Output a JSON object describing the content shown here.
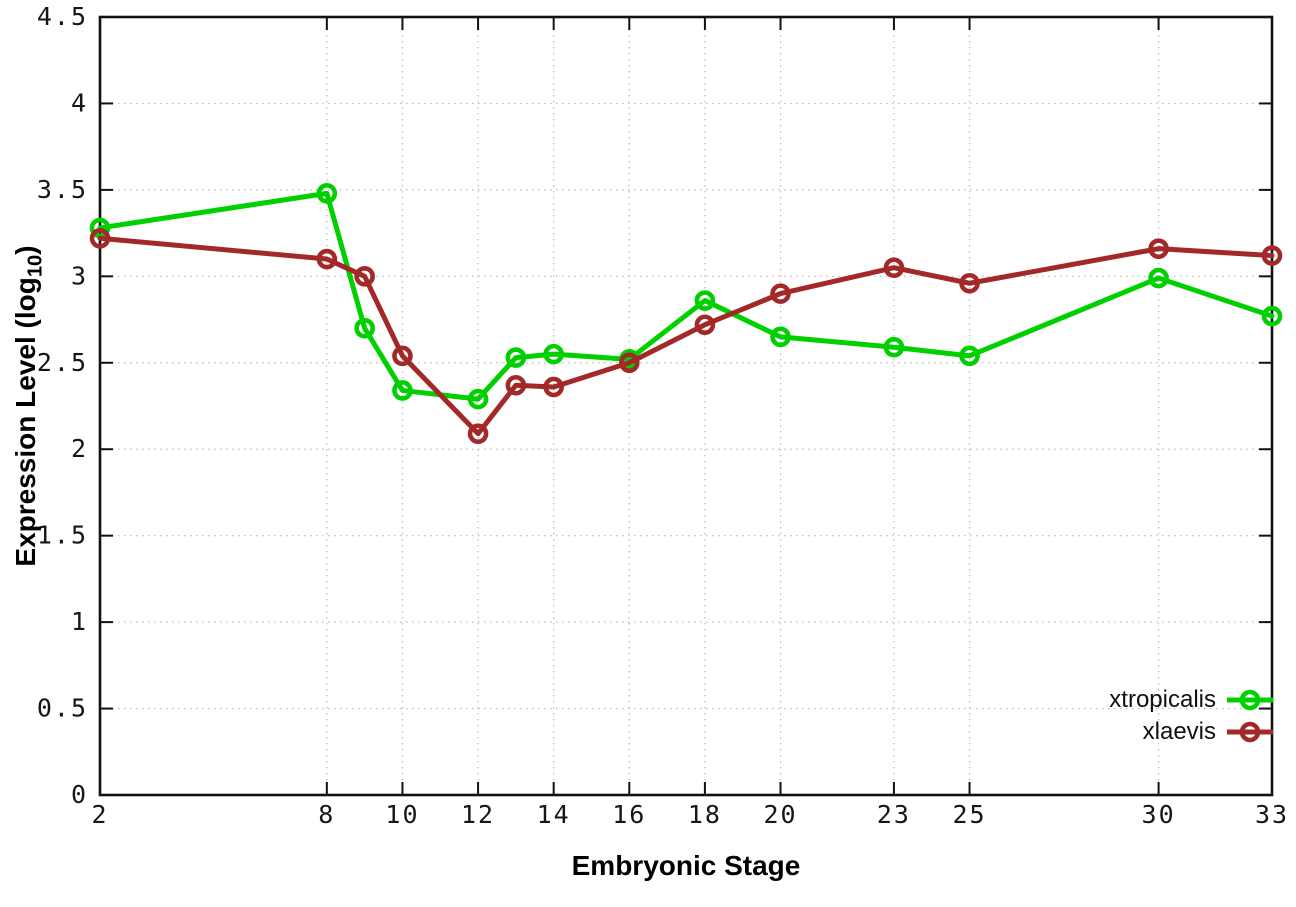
{
  "chart_data": {
    "type": "line",
    "title": "",
    "xlabel": "Embryonic Stage",
    "ylabel": "Expression Level (log10)",
    "ylabel_parts": {
      "pre": "Expression Level (log",
      "sub": "10",
      "post": ")"
    },
    "x": [
      2,
      8,
      9,
      10,
      12,
      13,
      14,
      16,
      18,
      20,
      23,
      25,
      30,
      33
    ],
    "series": [
      {
        "name": "xtropicalis",
        "color": "#00D000",
        "values": [
          3.28,
          3.48,
          2.7,
          2.34,
          2.29,
          2.53,
          2.55,
          2.52,
          2.86,
          2.65,
          2.59,
          2.54,
          2.99,
          2.77
        ]
      },
      {
        "name": "xlaevis",
        "color": "#A32929",
        "values": [
          3.22,
          3.1,
          3.0,
          2.54,
          2.09,
          2.37,
          2.36,
          2.5,
          2.72,
          2.9,
          3.05,
          2.96,
          3.16,
          3.12
        ]
      }
    ],
    "xlim": [
      2,
      33
    ],
    "ylim": [
      0,
      4.5
    ],
    "xticks": [
      2,
      8,
      10,
      12,
      14,
      16,
      18,
      20,
      23,
      25,
      30,
      33
    ],
    "yticks": [
      0,
      0.5,
      1,
      1.5,
      2,
      2.5,
      3,
      3.5,
      4,
      4.5
    ],
    "ytick_labels": [
      "0",
      "0.5",
      "1",
      "1.5",
      "2",
      "2.5",
      "3",
      "3.5",
      "4",
      "4.5"
    ],
    "grid": true,
    "legend_position": "bottom-right",
    "marker": "open-circle",
    "colors": {
      "axis": "#111111",
      "grid": "#b9b9b9",
      "tick_label": "#161616"
    }
  }
}
